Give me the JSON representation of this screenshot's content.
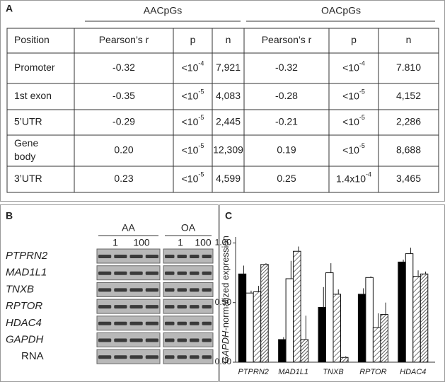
{
  "panel_a": {
    "label": "A",
    "groups": [
      "AACpGs",
      "OACpGs"
    ],
    "table": {
      "header": [
        "Position",
        "Pearson’s  r",
        "p",
        "n",
        "Pearson’s  r",
        "p",
        "n"
      ],
      "rows": [
        [
          "Promoter",
          "-0.32",
          {
            "base": "<10",
            "exp": "-4"
          },
          "7,921",
          "-0.32",
          {
            "base": "<10",
            "exp": "-4"
          },
          "7.810"
        ],
        [
          "1st exon",
          "-0.35",
          {
            "base": "<10",
            "exp": "-5"
          },
          "4,083",
          "-0.28",
          {
            "base": "<10",
            "exp": "-5"
          },
          "4,152"
        ],
        [
          "5’UTR",
          "-0.29",
          {
            "base": "<10",
            "exp": "-5"
          },
          "2,445",
          "-0.21",
          {
            "base": "<10",
            "exp": "-5"
          },
          "2,286"
        ],
        [
          {
            "lines": [
              "Gene",
              "body"
            ]
          },
          "0.20",
          {
            "base": "<10",
            "exp": "-5"
          },
          "12,309",
          "0.19",
          {
            "base": "<10",
            "exp": "-5"
          },
          "8,688"
        ],
        [
          "3’UTR",
          "0.23",
          {
            "base": "<10",
            "exp": "-5"
          },
          "4,599",
          "0.25",
          {
            "base": "1.4x10",
            "exp": "-4"
          },
          "3,465"
        ]
      ]
    }
  },
  "panel_b": {
    "label": "B",
    "groups": [
      "AA",
      "OA"
    ],
    "lane_labels": [
      "1",
      "100",
      "1",
      "100"
    ],
    "rows": [
      {
        "name": "PTPRN2",
        "italic": true
      },
      {
        "name": "MAD1L1",
        "italic": true
      },
      {
        "name": "TNXB",
        "italic": true
      },
      {
        "name": "RPTOR",
        "italic": true
      },
      {
        "name": "HDAC4",
        "italic": true
      },
      {
        "name": "GAPDH",
        "italic": true
      },
      {
        "name": "RNA",
        "italic": false
      }
    ]
  },
  "chart_data": {
    "type": "bar",
    "label": "C",
    "ylabel": [
      "GAPDH",
      "-normalized expression"
    ],
    "categories": [
      "PTPRN2",
      "MAD1L1",
      "TNXB",
      "RPTOR",
      "HDAC4"
    ],
    "series": [
      {
        "color": "#000000",
        "fill": "solid",
        "values": [
          0.74,
          0.19,
          0.46,
          0.57,
          0.84
        ],
        "errors": [
          0.07,
          0.02,
          0.17,
          0.05,
          0.02
        ]
      },
      {
        "color": "#ffffff",
        "fill": "solid",
        "values": [
          0.58,
          0.7,
          0.75,
          0.71,
          0.91
        ],
        "errors": [
          0.02,
          0.15,
          0.08,
          0.01,
          0.05
        ]
      },
      {
        "color": "#555555",
        "fill": "hatch-sparse",
        "values": [
          0.59,
          0.93,
          0.57,
          0.29,
          0.72
        ],
        "errors": [
          0.05,
          0.04,
          0.04,
          0.12,
          0.05
        ]
      },
      {
        "color": "#333333",
        "fill": "hatch-dense",
        "values": [
          0.82,
          0.19,
          0.04,
          0.4,
          0.74
        ],
        "errors": [
          0.01,
          0.2,
          0.01,
          0.1,
          0.02
        ]
      }
    ],
    "ylim": [
      0,
      1.05
    ],
    "yticks": [
      {
        "value": 0,
        "label": "0.00"
      },
      {
        "value": 0.5,
        "label": "0.50"
      },
      {
        "value": 1,
        "label": "1.00"
      }
    ]
  }
}
